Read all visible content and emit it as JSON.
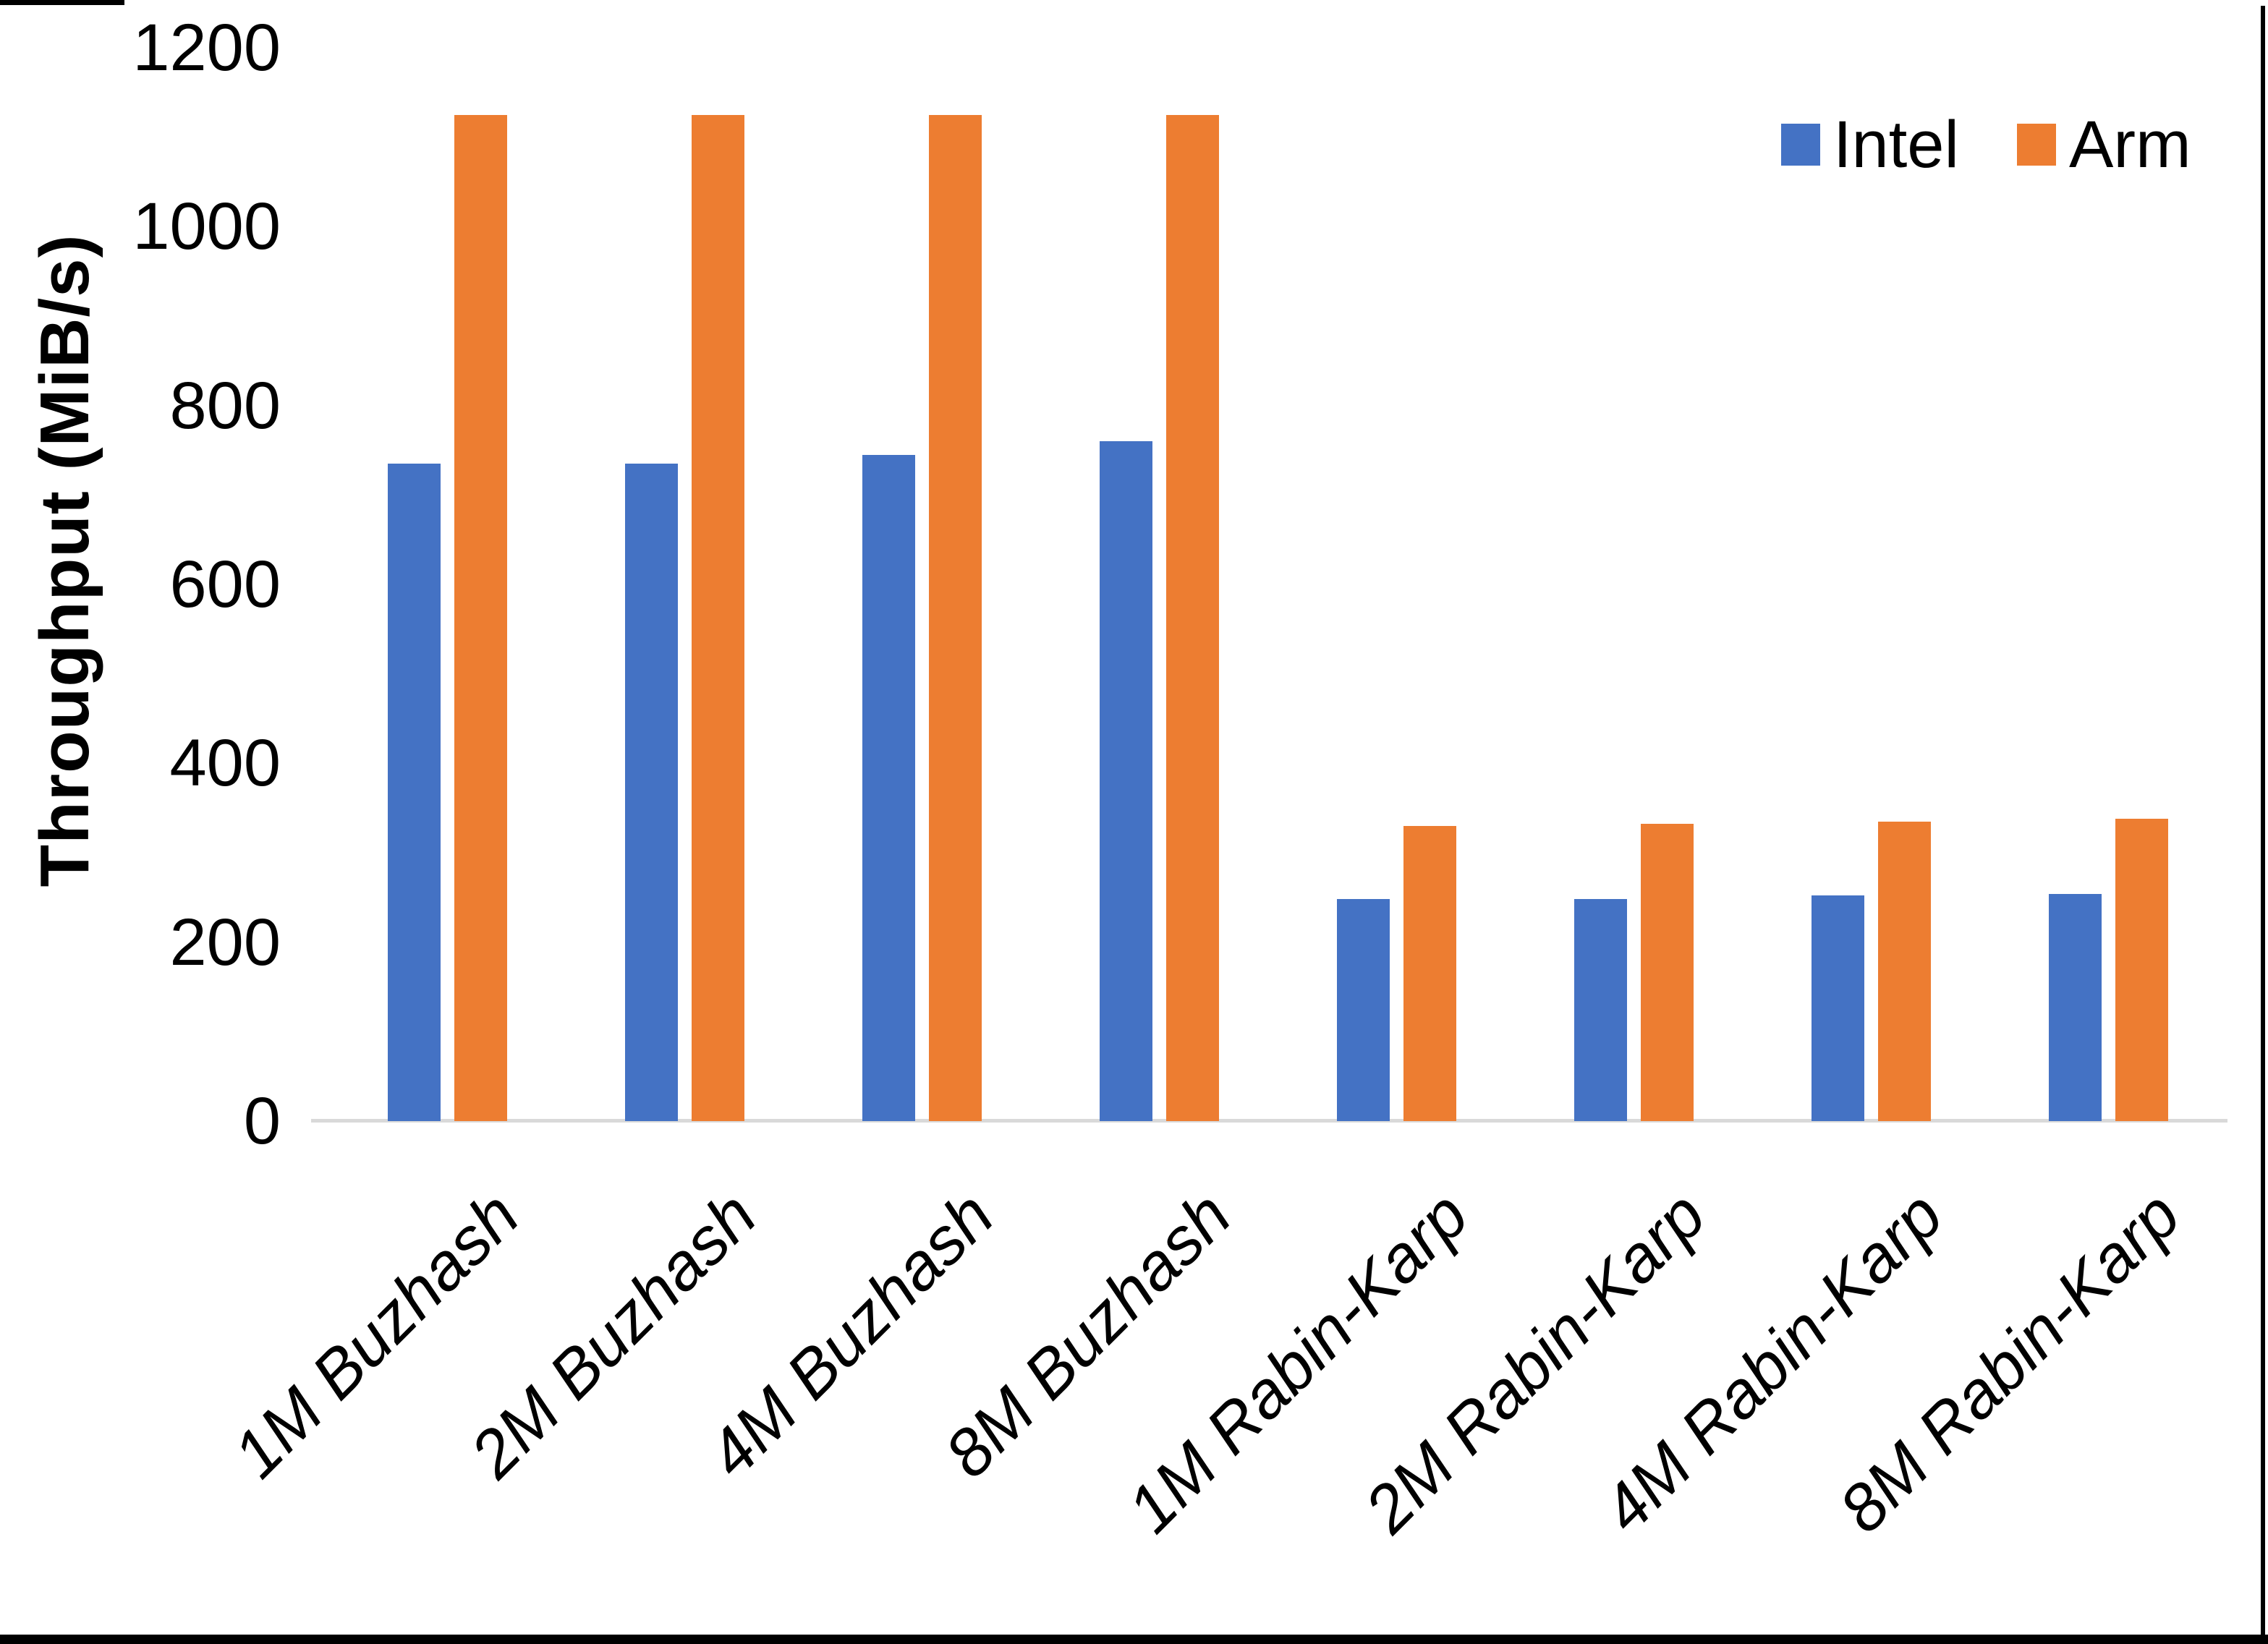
{
  "chart_data": {
    "type": "bar",
    "title": "",
    "categories": [
      "1M Buzhash",
      "2M Buzhash",
      "4M Buzhash",
      "8M Buzhash",
      "1M Rabin-Karp",
      "2M Rabin-Karp",
      "4M Rabin-Karp",
      "8M Rabin-Karp"
    ],
    "series": [
      {
        "name": "Intel",
        "color": "#4472C4",
        "values": [
          735,
          735,
          745,
          760,
          248,
          248,
          252,
          254
        ]
      },
      {
        "name": "Arm",
        "color": "#ED7D31",
        "values": [
          1125,
          1125,
          1125,
          1125,
          330,
          332,
          335,
          338
        ]
      }
    ],
    "xlabel": "",
    "ylabel": "Throughput (MiB/s)",
    "ylim": [
      0,
      1200
    ],
    "yticks": [
      0,
      200,
      400,
      600,
      800,
      1000,
      1200
    ],
    "grid": false,
    "legend_position": "top-right",
    "axis_line_color": "#D9D9D9",
    "background_color": "#FFFFFF",
    "frame_color": "#000000"
  }
}
